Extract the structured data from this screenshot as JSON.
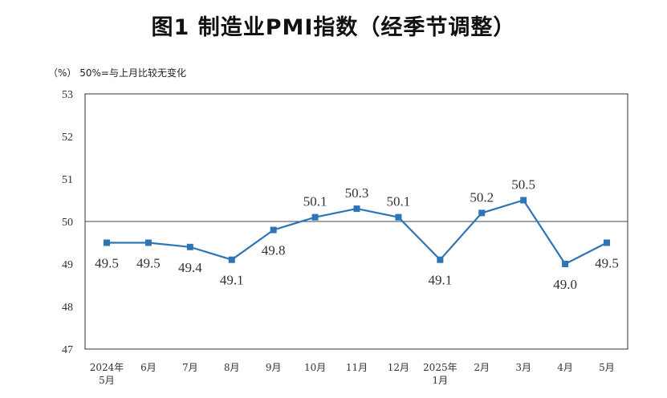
{
  "chart_data": {
    "type": "line",
    "title": "图1  制造业PMI指数（经季节调整）",
    "unit_note": "（%）  50%=与上月比较无变化",
    "categories": [
      [
        "2024年",
        "5月"
      ],
      [
        "6月"
      ],
      [
        "7月"
      ],
      [
        "8月"
      ],
      [
        "9月"
      ],
      [
        "10月"
      ],
      [
        "11月"
      ],
      [
        "12月"
      ],
      [
        "2025年",
        "1月"
      ],
      [
        "2月"
      ],
      [
        "3月"
      ],
      [
        "4月"
      ],
      [
        "5月"
      ]
    ],
    "series": [
      {
        "values": [
          49.5,
          49.5,
          49.4,
          49.1,
          49.8,
          50.1,
          50.3,
          50.1,
          49.1,
          50.2,
          50.5,
          49.0,
          49.5
        ],
        "labels": [
          "49.5",
          "49.5",
          "49.4",
          "49.1",
          "49.8",
          "50.1",
          "50.3",
          "50.1",
          "49.1",
          "50.2",
          "50.5",
          "49.0",
          "49.5"
        ],
        "color": "#2e75b6"
      }
    ],
    "ylim": [
      47,
      53
    ],
    "yticks": [
      47,
      48,
      49,
      50,
      51,
      52,
      53
    ],
    "reference_line": 50,
    "grid": false,
    "legend": "none"
  }
}
